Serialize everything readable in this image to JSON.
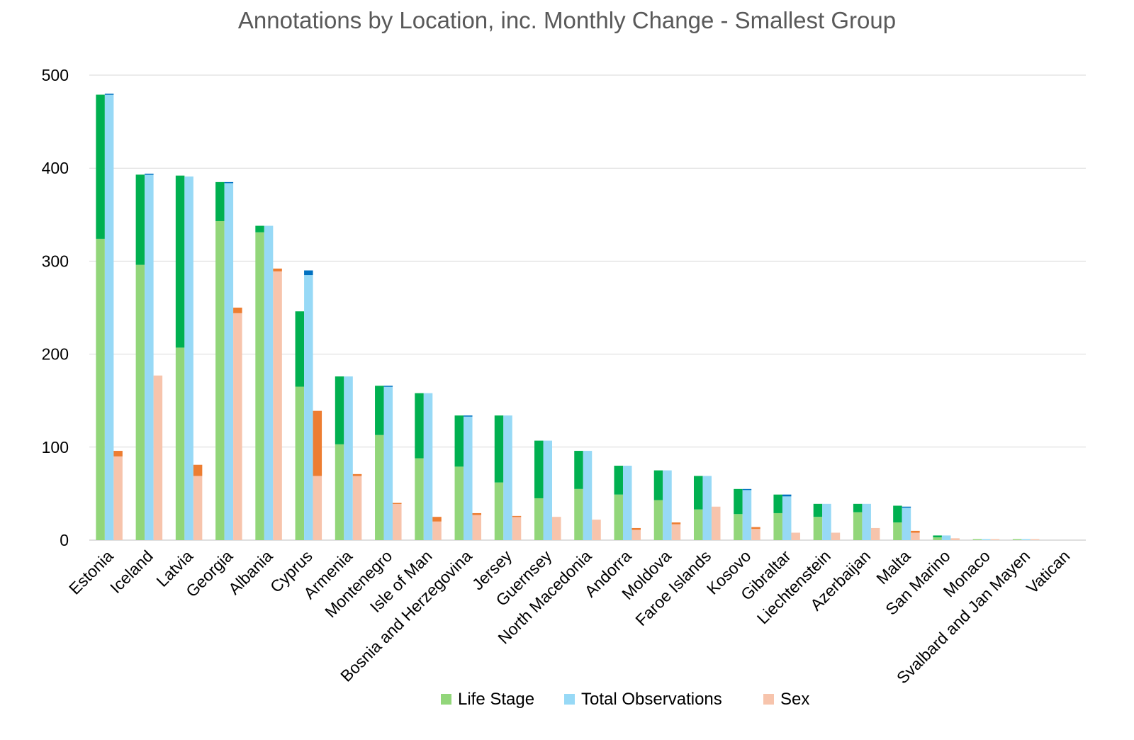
{
  "chart_data": {
    "type": "bar",
    "title": "Annotations by Location, inc. Monthly Change - Smallest Group",
    "xlabel": "",
    "ylabel": "",
    "ylim": [
      0,
      500
    ],
    "yticks": [
      0,
      100,
      200,
      300,
      400,
      500
    ],
    "grid": true,
    "legend_position": "bottom",
    "categories": [
      "Estonia",
      "Iceland",
      "Latvia",
      "Georgia",
      "Albania",
      "Cyprus",
      "Armenia",
      "Montenegro",
      "Isle of Man",
      "Bosnia and Herzegovina",
      "Jersey",
      "Guernsey",
      "North Macedonia",
      "Andorra",
      "Moldova",
      "Faroe Islands",
      "Kosovo",
      "Gibraltar",
      "Liechtenstein",
      "Azerbaijan",
      "Malta",
      "San Marino",
      "Monaco",
      "Svalbard and Jan Mayen",
      "Vatican"
    ],
    "series": [
      {
        "name": "Life Stage",
        "color": "#92d67a",
        "change_color": "#00b050",
        "values": [
          324,
          296,
          207,
          343,
          331,
          165,
          103,
          113,
          88,
          79,
          62,
          45,
          55,
          49,
          43,
          33,
          28,
          29,
          25,
          30,
          19,
          3,
          1,
          1,
          0
        ],
        "monthly_change": [
          155,
          97,
          185,
          42,
          7,
          81,
          73,
          53,
          70,
          55,
          72,
          62,
          41,
          31,
          32,
          36,
          27,
          20,
          14,
          9,
          18,
          2,
          0,
          0,
          0
        ]
      },
      {
        "name": "Total Observations",
        "color": "#97d9f6",
        "change_color": "#0070c0",
        "values": [
          479,
          393,
          391,
          384,
          338,
          285,
          176,
          165,
          158,
          133,
          134,
          107,
          96,
          80,
          75,
          69,
          54,
          47,
          39,
          39,
          35,
          5,
          1,
          1,
          0
        ],
        "monthly_change": [
          1,
          1,
          0,
          1,
          0,
          5,
          0,
          1,
          0,
          1,
          0,
          0,
          0,
          0,
          0,
          0,
          1,
          2,
          0,
          0,
          1,
          0,
          0,
          0,
          0
        ]
      },
      {
        "name": "Sex",
        "color": "#f7c4ac",
        "change_color": "#ed7d31",
        "values": [
          90,
          177,
          69,
          244,
          289,
          69,
          69,
          39,
          20,
          27,
          25,
          25,
          22,
          11,
          17,
          36,
          12,
          8,
          8,
          13,
          8,
          2,
          1,
          1,
          0
        ],
        "monthly_change": [
          6,
          0,
          12,
          6,
          3,
          70,
          2,
          1,
          5,
          2,
          1,
          0,
          0,
          2,
          2,
          0,
          2,
          0,
          0,
          0,
          2,
          0,
          0,
          0,
          0
        ]
      }
    ]
  }
}
